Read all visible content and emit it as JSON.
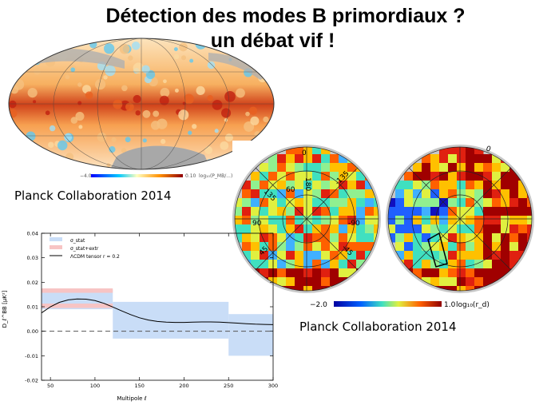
{
  "slide": {
    "title_line1": "Détection des modes B primordiaux ?",
    "title_line2": "un débat vif !",
    "caption_left": "Planck Collaboration 2014",
    "caption_right": "Planck Collaboration 2014"
  },
  "sky_map": {
    "colorbar_min": "−4.0",
    "colorbar_max": "0.10",
    "colorbar_unit": "log₁₀(P_MB/...)"
  },
  "polar_maps": {
    "lat_labels": [
      "0",
      "180",
      "135",
      "-135",
      "90",
      "-90",
      "60",
      "45",
      "-45"
    ],
    "colorbar_min": "−2.0",
    "colorbar_max": "1.0",
    "colorbar_unit": "log₁₀(r_d)"
  },
  "chart_data": {
    "type": "line",
    "xlabel": "Multipole ℓ",
    "ylabel": "D_ℓ^BB [μK²]",
    "xlim": [
      40,
      300
    ],
    "ylim": [
      -0.02,
      0.04
    ],
    "x_ticks": [
      "50",
      "100",
      "150",
      "200",
      "250",
      "300"
    ],
    "y_ticks": [
      "0.04",
      "0.03",
      "0.02",
      "0.01",
      "0.00",
      "-0.01",
      "-0.02"
    ],
    "legend": [
      "σ_stat",
      "σ_stat+extr",
      "ΛCDM tensor r = 0.2"
    ],
    "legend_position": "top-left",
    "stat_bands": [
      {
        "x0": 40,
        "x1": 120,
        "ymin": 0.009,
        "ymax": 0.017
      },
      {
        "x0": 120,
        "x1": 250,
        "ymin": -0.003,
        "ymax": 0.012
      },
      {
        "x0": 250,
        "x1": 300,
        "ymin": -0.01,
        "ymax": 0.007
      }
    ],
    "stat_extr_band": {
      "x0": 40,
      "x1": 120,
      "ymin": 0.0095,
      "ymax": 0.0175
    },
    "model_curve": {
      "x": [
        40,
        50,
        60,
        70,
        80,
        90,
        100,
        110,
        120,
        130,
        140,
        150,
        160,
        170,
        180,
        190,
        200,
        210,
        220,
        230,
        240,
        250,
        260,
        270,
        280,
        290,
        300
      ],
      "y": [
        0.0075,
        0.01,
        0.0118,
        0.0128,
        0.0132,
        0.0131,
        0.0125,
        0.0114,
        0.0099,
        0.0083,
        0.0068,
        0.0055,
        0.0046,
        0.004,
        0.0037,
        0.0036,
        0.0036,
        0.0037,
        0.0038,
        0.0038,
        0.0037,
        0.0035,
        0.0033,
        0.0031,
        0.0029,
        0.0028,
        0.0027
      ]
    }
  }
}
